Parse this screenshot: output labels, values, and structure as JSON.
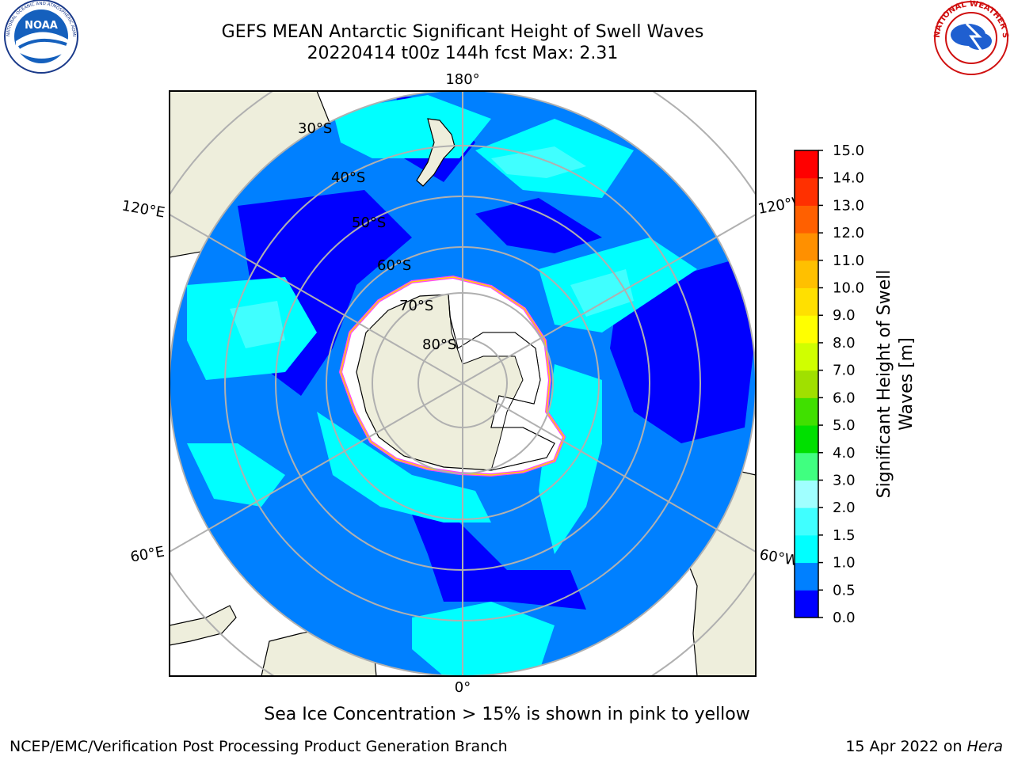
{
  "header": {
    "title_line1": "GEFS MEAN Antarctic Significant Height of Swell Waves",
    "title_line2": "20220414 t00z 144h fcst   Max: 2.31"
  },
  "logos": {
    "left": {
      "name": "NOAA",
      "ring_text": "NATIONAL OCEANIC AND ATMOSPHERIC ADMINISTRATION · U.S. DEPARTMENT OF COMMERCE"
    },
    "right": {
      "name": "NATIONAL WEATHER SERVICE"
    }
  },
  "map": {
    "projection": "south-polar-stereographic",
    "longitude_labels": {
      "top": "180°",
      "bottom": "0°",
      "upper_left": "120°E",
      "lower_left": "60°E",
      "upper_right": "120°W",
      "lower_right": "60°W"
    },
    "latitude_labels": [
      "30°S",
      "40°S",
      "50°S",
      "60°S",
      "70°S",
      "80°S"
    ],
    "colors": {
      "land": "#eeeedc",
      "ice_edge": [
        "#ff44ff",
        "#ffd700"
      ],
      "grid": "#b0b0b0"
    }
  },
  "colorbar": {
    "label_line1": "Significant Height of Swell",
    "label_line2": "Waves [m]",
    "ticks": [
      "0.0",
      "0.5",
      "1.0",
      "1.5",
      "2.0",
      "3.0",
      "4.0",
      "5.0",
      "6.0",
      "7.0",
      "8.0",
      "9.0",
      "10.0",
      "11.0",
      "12.0",
      "13.0",
      "14.0",
      "15.0"
    ],
    "colors": [
      "#0000ff",
      "#0080ff",
      "#00ffff",
      "#40ffff",
      "#a0ffff",
      "#40ff80",
      "#00e000",
      "#40e000",
      "#a0e000",
      "#d0ff00",
      "#ffff00",
      "#ffe000",
      "#ffc000",
      "#ff9000",
      "#ff6000",
      "#ff3000",
      "#ff0000"
    ]
  },
  "footer": {
    "note": "Sea Ice Concentration > 15% is shown in pink to yellow",
    "credit": "NCEP/EMC/Verification Post Processing Product Generation Branch",
    "date": "15 Apr 2022 on ",
    "machine": "Hera"
  }
}
